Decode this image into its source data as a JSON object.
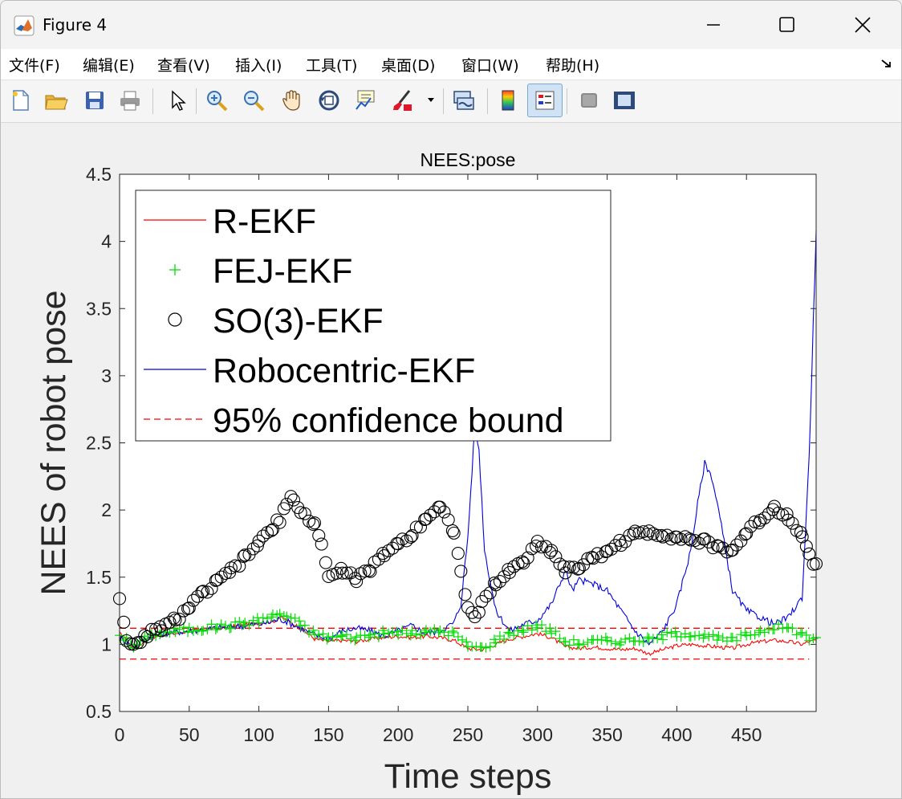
{
  "window": {
    "title": "Figure 4"
  },
  "menu": [
    "文件(F)",
    "编辑(E)",
    "查看(V)",
    "插入(I)",
    "工具(T)",
    "桌面(D)",
    "窗口(W)",
    "帮助(H)"
  ],
  "toolbar": [
    "new-file-icon",
    "open-folder-icon",
    "save-icon",
    "print-icon",
    "pointer-icon",
    "zoom-in-icon",
    "zoom-out-icon",
    "pan-hand-icon",
    "rotate-3d-icon",
    "data-cursor-icon",
    "brush-icon",
    "link-plot-icon",
    "colorbar-icon",
    "legend-icon",
    "hide-plot-tools-icon",
    "show-plot-tools-icon"
  ],
  "chart_data": {
    "type": "line",
    "title": "NEES:pose",
    "xlabel": "Time steps",
    "ylabel": "NEES of robot pose",
    "xlim": [
      0,
      500
    ],
    "ylim": [
      0.5,
      4.5
    ],
    "xticks": [
      "0",
      "50",
      "100",
      "150",
      "200",
      "250",
      "300",
      "350",
      "400",
      "450"
    ],
    "yticks": [
      "0.5",
      "1",
      "1.5",
      "2",
      "2.5",
      "3",
      "3.5",
      "4",
      "4.5"
    ],
    "legend_position": "top-left",
    "bounds": {
      "name": "95% confidence bound",
      "upper": 1.12,
      "lower": 0.89,
      "color": "#ff0000"
    },
    "series": [
      {
        "name": "R-EKF",
        "color": "#ff0000",
        "style": "line",
        "points": [
          [
            0,
            1.08
          ],
          [
            5,
            1.03
          ],
          [
            10,
            0.97
          ],
          [
            15,
            1.0
          ],
          [
            20,
            1.04
          ],
          [
            30,
            1.07
          ],
          [
            40,
            1.08
          ],
          [
            50,
            1.1
          ],
          [
            60,
            1.11
          ],
          [
            70,
            1.12
          ],
          [
            80,
            1.13
          ],
          [
            90,
            1.15
          ],
          [
            100,
            1.16
          ],
          [
            110,
            1.17
          ],
          [
            115,
            1.2
          ],
          [
            120,
            1.18
          ],
          [
            130,
            1.12
          ],
          [
            140,
            1.04
          ],
          [
            150,
            1.02
          ],
          [
            160,
            1.03
          ],
          [
            170,
            1.02
          ],
          [
            180,
            1.04
          ],
          [
            190,
            1.05
          ],
          [
            200,
            1.06
          ],
          [
            210,
            1.05
          ],
          [
            220,
            1.06
          ],
          [
            230,
            1.05
          ],
          [
            240,
            1.03
          ],
          [
            250,
            0.97
          ],
          [
            260,
            0.96
          ],
          [
            270,
            1.0
          ],
          [
            280,
            1.04
          ],
          [
            290,
            1.06
          ],
          [
            300,
            1.08
          ],
          [
            310,
            1.05
          ],
          [
            320,
            0.98
          ],
          [
            330,
            0.97
          ],
          [
            340,
            0.98
          ],
          [
            350,
            0.97
          ],
          [
            360,
            0.96
          ],
          [
            370,
            0.97
          ],
          [
            380,
            0.93
          ],
          [
            390,
            0.96
          ],
          [
            400,
            0.99
          ],
          [
            410,
            1.0
          ],
          [
            420,
            0.99
          ],
          [
            430,
            0.98
          ],
          [
            440,
            0.97
          ],
          [
            450,
            1.0
          ],
          [
            460,
            1.02
          ],
          [
            470,
            1.03
          ],
          [
            480,
            1.02
          ],
          [
            490,
            1.0
          ],
          [
            495,
            1.02
          ],
          [
            500,
            1.03
          ]
        ]
      },
      {
        "name": "FEJ-EKF",
        "color": "#00dd00",
        "style": "plus",
        "points": [
          [
            0,
            1.08
          ],
          [
            5,
            1.03
          ],
          [
            10,
            0.98
          ],
          [
            15,
            1.01
          ],
          [
            20,
            1.06
          ],
          [
            30,
            1.09
          ],
          [
            40,
            1.1
          ],
          [
            50,
            1.11
          ],
          [
            60,
            1.12
          ],
          [
            70,
            1.13
          ],
          [
            80,
            1.14
          ],
          [
            90,
            1.16
          ],
          [
            100,
            1.18
          ],
          [
            110,
            1.21
          ],
          [
            115,
            1.23
          ],
          [
            120,
            1.21
          ],
          [
            130,
            1.15
          ],
          [
            140,
            1.08
          ],
          [
            150,
            1.05
          ],
          [
            160,
            1.06
          ],
          [
            170,
            1.05
          ],
          [
            180,
            1.07
          ],
          [
            190,
            1.08
          ],
          [
            200,
            1.09
          ],
          [
            210,
            1.08
          ],
          [
            220,
            1.09
          ],
          [
            230,
            1.1
          ],
          [
            240,
            1.08
          ],
          [
            250,
            0.99
          ],
          [
            260,
            0.97
          ],
          [
            270,
            1.03
          ],
          [
            280,
            1.08
          ],
          [
            290,
            1.11
          ],
          [
            300,
            1.14
          ],
          [
            310,
            1.1
          ],
          [
            320,
            1.02
          ],
          [
            330,
            1.01
          ],
          [
            340,
            1.02
          ],
          [
            350,
            1.03
          ],
          [
            360,
            1.02
          ],
          [
            370,
            1.04
          ],
          [
            380,
            1.03
          ],
          [
            390,
            1.06
          ],
          [
            400,
            1.08
          ],
          [
            410,
            1.08
          ],
          [
            420,
            1.06
          ],
          [
            430,
            1.04
          ],
          [
            440,
            1.03
          ],
          [
            450,
            1.07
          ],
          [
            460,
            1.1
          ],
          [
            470,
            1.13
          ],
          [
            480,
            1.12
          ],
          [
            490,
            1.08
          ],
          [
            495,
            1.04
          ],
          [
            500,
            1.05
          ]
        ]
      },
      {
        "name": "SO(3)-EKF",
        "color": "#000000",
        "style": "circle",
        "points": [
          [
            0,
            1.35
          ],
          [
            5,
            1.05
          ],
          [
            10,
            0.98
          ],
          [
            15,
            1.0
          ],
          [
            20,
            1.08
          ],
          [
            30,
            1.12
          ],
          [
            40,
            1.18
          ],
          [
            50,
            1.28
          ],
          [
            60,
            1.38
          ],
          [
            70,
            1.46
          ],
          [
            80,
            1.55
          ],
          [
            90,
            1.64
          ],
          [
            100,
            1.76
          ],
          [
            110,
            1.86
          ],
          [
            115,
            1.93
          ],
          [
            120,
            2.05
          ],
          [
            125,
            2.1
          ],
          [
            130,
            1.98
          ],
          [
            140,
            1.9
          ],
          [
            145,
            1.75
          ],
          [
            150,
            1.5
          ],
          [
            160,
            1.55
          ],
          [
            170,
            1.49
          ],
          [
            180,
            1.55
          ],
          [
            190,
            1.68
          ],
          [
            200,
            1.75
          ],
          [
            210,
            1.82
          ],
          [
            220,
            1.95
          ],
          [
            230,
            2.02
          ],
          [
            240,
            1.85
          ],
          [
            245,
            1.55
          ],
          [
            250,
            1.25
          ],
          [
            255,
            1.2
          ],
          [
            260,
            1.3
          ],
          [
            270,
            1.45
          ],
          [
            280,
            1.55
          ],
          [
            290,
            1.62
          ],
          [
            300,
            1.75
          ],
          [
            310,
            1.7
          ],
          [
            320,
            1.55
          ],
          [
            330,
            1.58
          ],
          [
            340,
            1.64
          ],
          [
            350,
            1.7
          ],
          [
            360,
            1.76
          ],
          [
            370,
            1.82
          ],
          [
            380,
            1.84
          ],
          [
            390,
            1.82
          ],
          [
            400,
            1.8
          ],
          [
            410,
            1.78
          ],
          [
            420,
            1.76
          ],
          [
            430,
            1.72
          ],
          [
            440,
            1.7
          ],
          [
            450,
            1.83
          ],
          [
            460,
            1.93
          ],
          [
            470,
            2.02
          ],
          [
            480,
            1.95
          ],
          [
            490,
            1.82
          ],
          [
            495,
            1.65
          ],
          [
            500,
            1.6
          ]
        ]
      },
      {
        "name": "Robocentric-EKF",
        "color": "#0000dd",
        "style": "line",
        "points": [
          [
            0,
            1.05
          ],
          [
            5,
            1.02
          ],
          [
            10,
            0.98
          ],
          [
            15,
            1.01
          ],
          [
            20,
            1.05
          ],
          [
            30,
            1.08
          ],
          [
            40,
            1.09
          ],
          [
            50,
            1.1
          ],
          [
            60,
            1.11
          ],
          [
            70,
            1.12
          ],
          [
            80,
            1.13
          ],
          [
            90,
            1.14
          ],
          [
            100,
            1.15
          ],
          [
            110,
            1.17
          ],
          [
            115,
            1.19
          ],
          [
            120,
            1.17
          ],
          [
            130,
            1.12
          ],
          [
            140,
            1.07
          ],
          [
            150,
            1.04
          ],
          [
            160,
            1.1
          ],
          [
            170,
            1.12
          ],
          [
            180,
            1.1
          ],
          [
            190,
            1.06
          ],
          [
            200,
            1.1
          ],
          [
            210,
            1.14
          ],
          [
            220,
            1.08
          ],
          [
            230,
            1.1
          ],
          [
            240,
            1.16
          ],
          [
            245,
            1.3
          ],
          [
            250,
            1.8
          ],
          [
            255,
            2.62
          ],
          [
            258,
            2.45
          ],
          [
            262,
            1.7
          ],
          [
            270,
            1.25
          ],
          [
            280,
            1.1
          ],
          [
            290,
            1.15
          ],
          [
            300,
            1.18
          ],
          [
            310,
            1.3
          ],
          [
            320,
            1.55
          ],
          [
            325,
            1.4
          ],
          [
            330,
            1.48
          ],
          [
            340,
            1.45
          ],
          [
            350,
            1.4
          ],
          [
            360,
            1.25
          ],
          [
            370,
            1.1
          ],
          [
            380,
            1.0
          ],
          [
            390,
            1.1
          ],
          [
            400,
            1.3
          ],
          [
            410,
            1.7
          ],
          [
            415,
            2.05
          ],
          [
            420,
            2.35
          ],
          [
            425,
            2.25
          ],
          [
            430,
            2.0
          ],
          [
            440,
            1.4
          ],
          [
            450,
            1.25
          ],
          [
            460,
            1.2
          ],
          [
            470,
            1.15
          ],
          [
            480,
            1.2
          ],
          [
            490,
            1.35
          ],
          [
            495,
            2.4
          ],
          [
            500,
            4.08
          ]
        ]
      }
    ]
  }
}
